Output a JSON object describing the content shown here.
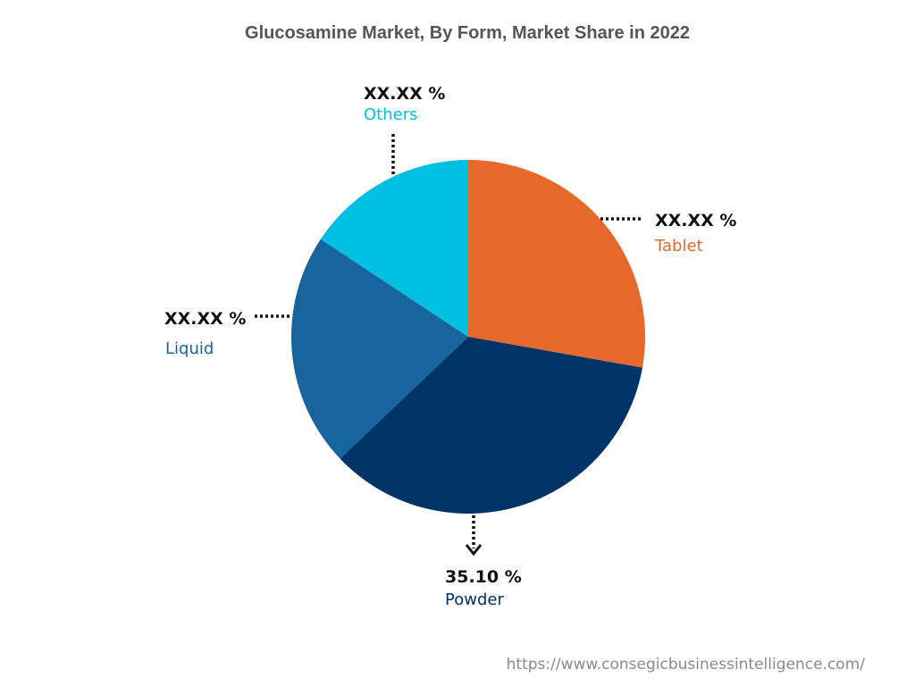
{
  "chart_data": {
    "type": "pie",
    "title": "Glucosamine Market, By Form, Market Share in 2022",
    "slices": [
      {
        "name": "Tablet",
        "label": "XX.XX %",
        "value": 27.8,
        "color": "#e5692b"
      },
      {
        "name": "Powder",
        "label": "35.10 %",
        "value": 35.1,
        "color": "#003366"
      },
      {
        "name": "Liquid",
        "label": "XX.XX %",
        "value": 21.4,
        "color": "#16659e"
      },
      {
        "name": "Others",
        "label": "XX.XX %",
        "value": 15.7,
        "color": "#00c0e2"
      }
    ],
    "start_angle_deg": 0,
    "direction": "clockwise"
  },
  "source_url": "https://www.consegicbusinessintelligence.com/"
}
